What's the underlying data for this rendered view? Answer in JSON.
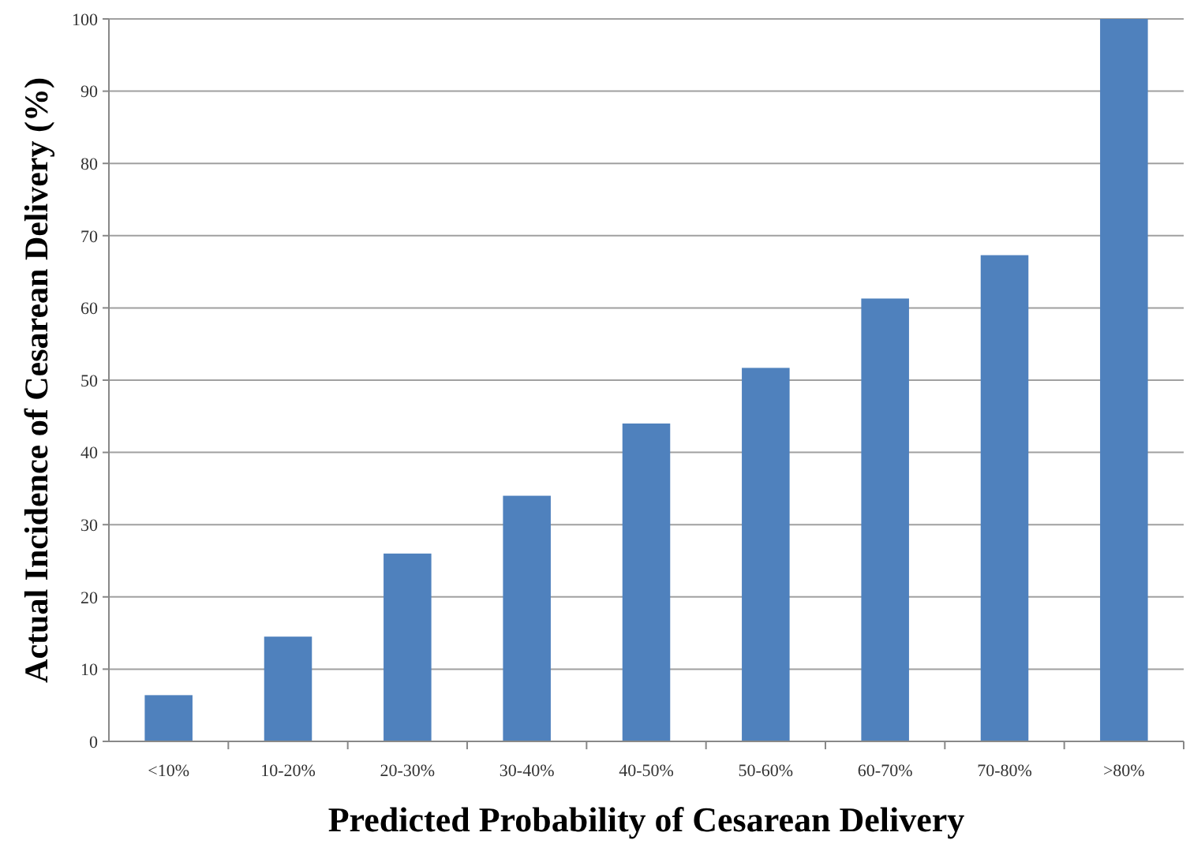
{
  "chart_data": {
    "type": "bar",
    "xlabel": "Predicted Probability of Cesarean Delivery",
    "ylabel": "Actual Incidence of Cesarean Delivery (%)",
    "categories": [
      "<10%",
      "10-20%",
      "20-30%",
      "30-40%",
      "40-50%",
      "50-60%",
      "60-70%",
      "70-80%",
      ">80%"
    ],
    "values": [
      6.4,
      14.5,
      26,
      34,
      44,
      51.7,
      61.3,
      67.3,
      100
    ],
    "color": "#4f81bd",
    "ylim": [
      0,
      100
    ],
    "yticks": [
      0,
      10,
      20,
      30,
      40,
      50,
      60,
      70,
      80,
      90,
      100
    ],
    "grid": "y"
  }
}
